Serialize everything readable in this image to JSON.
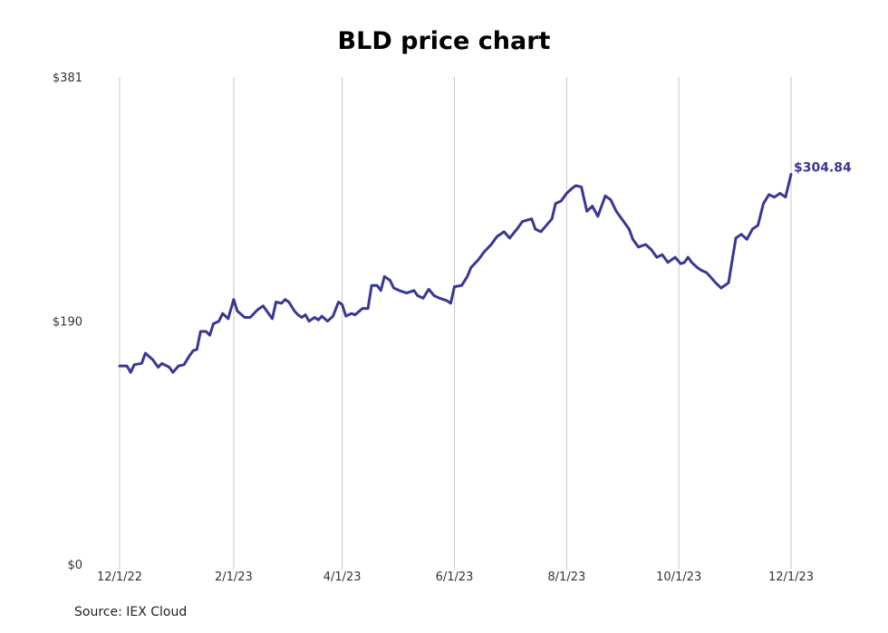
{
  "chart_data": {
    "type": "line",
    "title": "BLD price chart",
    "source": "Source: IEX Cloud",
    "y_ticks": [
      "$0",
      "$190",
      "$381"
    ],
    "y_tick_values": [
      0,
      190,
      381
    ],
    "ylim": [
      0,
      381
    ],
    "x_ticks": [
      "12/1/22",
      "2/1/23",
      "4/1/23",
      "6/1/23",
      "8/1/23",
      "10/1/23",
      "12/1/23"
    ],
    "x_tick_dates": [
      "2022-12-01",
      "2023-02-01",
      "2023-04-01",
      "2023-06-01",
      "2023-08-01",
      "2023-10-01",
      "2023-12-01"
    ],
    "grid": "vertical",
    "line_color": "#3a3695",
    "last_value_label": "$304.84",
    "series": [
      {
        "points": [
          [
            "2022-12-01",
            155
          ],
          [
            "2022-12-05",
            155
          ],
          [
            "2022-12-07",
            150
          ],
          [
            "2022-12-09",
            156
          ],
          [
            "2022-12-13",
            157
          ],
          [
            "2022-12-15",
            165
          ],
          [
            "2022-12-19",
            160
          ],
          [
            "2022-12-22",
            154
          ],
          [
            "2022-12-24",
            157
          ],
          [
            "2022-12-28",
            154
          ],
          [
            "2022-12-30",
            150
          ],
          [
            "2023-01-02",
            155
          ],
          [
            "2023-01-05",
            156
          ],
          [
            "2023-01-08",
            163
          ],
          [
            "2023-01-10",
            167
          ],
          [
            "2023-01-12",
            168
          ],
          [
            "2023-01-14",
            182
          ],
          [
            "2023-01-17",
            182
          ],
          [
            "2023-01-19",
            179
          ],
          [
            "2023-01-21",
            188
          ],
          [
            "2023-01-24",
            190
          ],
          [
            "2023-01-26",
            196
          ],
          [
            "2023-01-29",
            192
          ],
          [
            "2023-02-01",
            207
          ],
          [
            "2023-02-03",
            198
          ],
          [
            "2023-02-07",
            193
          ],
          [
            "2023-02-10",
            193
          ],
          [
            "2023-02-14",
            199
          ],
          [
            "2023-02-17",
            202
          ],
          [
            "2023-02-20",
            196
          ],
          [
            "2023-02-22",
            192
          ],
          [
            "2023-02-24",
            205
          ],
          [
            "2023-02-27",
            204
          ],
          [
            "2023-03-01",
            207
          ],
          [
            "2023-03-03",
            205
          ],
          [
            "2023-03-06",
            198
          ],
          [
            "2023-03-08",
            195
          ],
          [
            "2023-03-10",
            193
          ],
          [
            "2023-03-12",
            195
          ],
          [
            "2023-03-14",
            190
          ],
          [
            "2023-03-17",
            193
          ],
          [
            "2023-03-19",
            191
          ],
          [
            "2023-03-21",
            194
          ],
          [
            "2023-03-24",
            190
          ],
          [
            "2023-03-27",
            194
          ],
          [
            "2023-03-30",
            205
          ],
          [
            "2023-04-01",
            203
          ],
          [
            "2023-04-03",
            194
          ],
          [
            "2023-04-06",
            196
          ],
          [
            "2023-04-08",
            195
          ],
          [
            "2023-04-12",
            200
          ],
          [
            "2023-04-15",
            200
          ],
          [
            "2023-04-17",
            218
          ],
          [
            "2023-04-20",
            218
          ],
          [
            "2023-04-22",
            214
          ],
          [
            "2023-04-24",
            225
          ],
          [
            "2023-04-27",
            222
          ],
          [
            "2023-04-29",
            216
          ],
          [
            "2023-05-02",
            214
          ],
          [
            "2023-05-06",
            212
          ],
          [
            "2023-05-10",
            214
          ],
          [
            "2023-05-12",
            210
          ],
          [
            "2023-05-15",
            208
          ],
          [
            "2023-05-18",
            215
          ],
          [
            "2023-05-21",
            210
          ],
          [
            "2023-05-24",
            208
          ],
          [
            "2023-05-28",
            206
          ],
          [
            "2023-05-30",
            204
          ],
          [
            "2023-06-01",
            217
          ],
          [
            "2023-06-05",
            218
          ],
          [
            "2023-06-08",
            225
          ],
          [
            "2023-06-10",
            232
          ],
          [
            "2023-06-14",
            238
          ],
          [
            "2023-06-17",
            244
          ],
          [
            "2023-06-21",
            250
          ],
          [
            "2023-06-24",
            256
          ],
          [
            "2023-06-28",
            260
          ],
          [
            "2023-07-01",
            255
          ],
          [
            "2023-07-05",
            262
          ],
          [
            "2023-07-08",
            268
          ],
          [
            "2023-07-13",
            270
          ],
          [
            "2023-07-15",
            262
          ],
          [
            "2023-07-18",
            260
          ],
          [
            "2023-07-21",
            265
          ],
          [
            "2023-07-24",
            270
          ],
          [
            "2023-07-26",
            282
          ],
          [
            "2023-07-29",
            284
          ],
          [
            "2023-08-01",
            290
          ],
          [
            "2023-08-04",
            294
          ],
          [
            "2023-08-06",
            296
          ],
          [
            "2023-08-09",
            295
          ],
          [
            "2023-08-12",
            276
          ],
          [
            "2023-08-15",
            280
          ],
          [
            "2023-08-18",
            272
          ],
          [
            "2023-08-22",
            288
          ],
          [
            "2023-08-25",
            285
          ],
          [
            "2023-08-28",
            276
          ],
          [
            "2023-08-31",
            270
          ],
          [
            "2023-09-04",
            262
          ],
          [
            "2023-09-06",
            254
          ],
          [
            "2023-09-09",
            248
          ],
          [
            "2023-09-13",
            250
          ],
          [
            "2023-09-16",
            246
          ],
          [
            "2023-09-19",
            240
          ],
          [
            "2023-09-22",
            242
          ],
          [
            "2023-09-25",
            236
          ],
          [
            "2023-09-29",
            240
          ],
          [
            "2023-10-02",
            235
          ],
          [
            "2023-10-04",
            236
          ],
          [
            "2023-10-06",
            240
          ],
          [
            "2023-10-08",
            236
          ],
          [
            "2023-10-11",
            232
          ],
          [
            "2023-10-13",
            230
          ],
          [
            "2023-10-16",
            228
          ],
          [
            "2023-10-18",
            225
          ],
          [
            "2023-10-21",
            220
          ],
          [
            "2023-10-24",
            216
          ],
          [
            "2023-10-28",
            220
          ],
          [
            "2023-11-01",
            255
          ],
          [
            "2023-11-04",
            258
          ],
          [
            "2023-11-07",
            254
          ],
          [
            "2023-11-10",
            262
          ],
          [
            "2023-11-13",
            265
          ],
          [
            "2023-11-16",
            282
          ],
          [
            "2023-11-19",
            289
          ],
          [
            "2023-11-22",
            287
          ],
          [
            "2023-11-25",
            290
          ],
          [
            "2023-11-28",
            287
          ],
          [
            "2023-12-01",
            304.84
          ]
        ]
      }
    ]
  }
}
